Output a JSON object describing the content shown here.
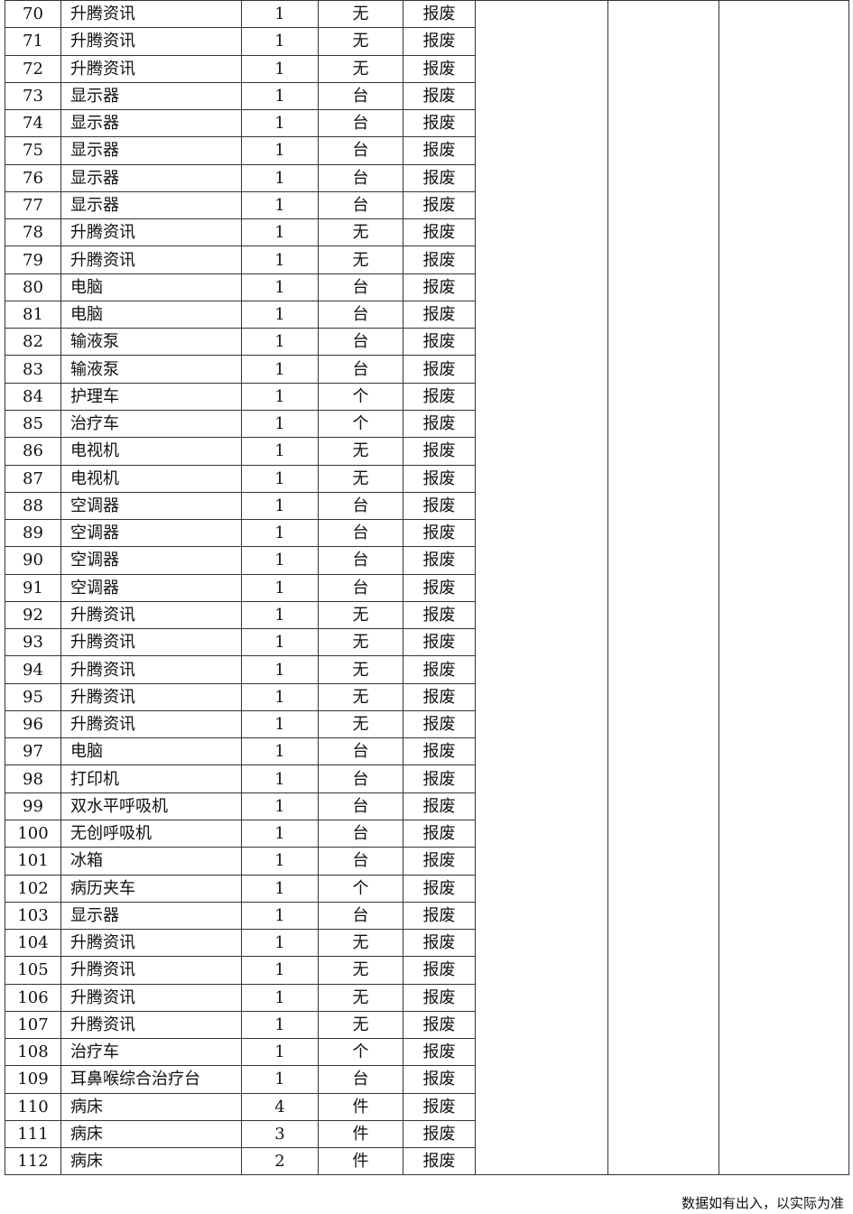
{
  "rows": [
    {
      "no": "70",
      "name": "升腾资讯",
      "qty": "1",
      "unit": "无",
      "status": "报废"
    },
    {
      "no": "71",
      "name": "升腾资讯",
      "qty": "1",
      "unit": "无",
      "status": "报废"
    },
    {
      "no": "72",
      "name": "升腾资讯",
      "qty": "1",
      "unit": "无",
      "status": "报废"
    },
    {
      "no": "73",
      "name": "显示器",
      "qty": "1",
      "unit": "台",
      "status": "报废"
    },
    {
      "no": "74",
      "name": "显示器",
      "qty": "1",
      "unit": "台",
      "status": "报废"
    },
    {
      "no": "75",
      "name": "显示器",
      "qty": "1",
      "unit": "台",
      "status": "报废"
    },
    {
      "no": "76",
      "name": "显示器",
      "qty": "1",
      "unit": "台",
      "status": "报废"
    },
    {
      "no": "77",
      "name": "显示器",
      "qty": "1",
      "unit": "台",
      "status": "报废"
    },
    {
      "no": "78",
      "name": "升腾资讯",
      "qty": "1",
      "unit": "无",
      "status": "报废"
    },
    {
      "no": "79",
      "name": "升腾资讯",
      "qty": "1",
      "unit": "无",
      "status": "报废"
    },
    {
      "no": "80",
      "name": "电脑",
      "qty": "1",
      "unit": "台",
      "status": "报废"
    },
    {
      "no": "81",
      "name": "电脑",
      "qty": "1",
      "unit": "台",
      "status": "报废"
    },
    {
      "no": "82",
      "name": "输液泵",
      "qty": "1",
      "unit": "台",
      "status": "报废"
    },
    {
      "no": "83",
      "name": "输液泵",
      "qty": "1",
      "unit": "台",
      "status": "报废"
    },
    {
      "no": "84",
      "name": "护理车",
      "qty": "1",
      "unit": "个",
      "status": "报废"
    },
    {
      "no": "85",
      "name": "治疗车",
      "qty": "1",
      "unit": "个",
      "status": "报废"
    },
    {
      "no": "86",
      "name": "电视机",
      "qty": "1",
      "unit": "无",
      "status": "报废"
    },
    {
      "no": "87",
      "name": "电视机",
      "qty": "1",
      "unit": "无",
      "status": "报废"
    },
    {
      "no": "88",
      "name": "空调器",
      "qty": "1",
      "unit": "台",
      "status": "报废"
    },
    {
      "no": "89",
      "name": "空调器",
      "qty": "1",
      "unit": "台",
      "status": "报废"
    },
    {
      "no": "90",
      "name": "空调器",
      "qty": "1",
      "unit": "台",
      "status": "报废"
    },
    {
      "no": "91",
      "name": "空调器",
      "qty": "1",
      "unit": "台",
      "status": "报废"
    },
    {
      "no": "92",
      "name": "升腾资讯",
      "qty": "1",
      "unit": "无",
      "status": "报废"
    },
    {
      "no": "93",
      "name": "升腾资讯",
      "qty": "1",
      "unit": "无",
      "status": "报废"
    },
    {
      "no": "94",
      "name": "升腾资讯",
      "qty": "1",
      "unit": "无",
      "status": "报废"
    },
    {
      "no": "95",
      "name": "升腾资讯",
      "qty": "1",
      "unit": "无",
      "status": "报废"
    },
    {
      "no": "96",
      "name": "升腾资讯",
      "qty": "1",
      "unit": "无",
      "status": "报废"
    },
    {
      "no": "97",
      "name": "电脑",
      "qty": "1",
      "unit": "台",
      "status": "报废"
    },
    {
      "no": "98",
      "name": "打印机",
      "qty": "1",
      "unit": "台",
      "status": "报废"
    },
    {
      "no": "99",
      "name": "双水平呼吸机",
      "qty": "1",
      "unit": "台",
      "status": "报废"
    },
    {
      "no": "100",
      "name": "无创呼吸机",
      "qty": "1",
      "unit": "台",
      "status": "报废"
    },
    {
      "no": "101",
      "name": "冰箱",
      "qty": "1",
      "unit": "台",
      "status": "报废"
    },
    {
      "no": "102",
      "name": "病历夹车",
      "qty": "1",
      "unit": "个",
      "status": "报废"
    },
    {
      "no": "103",
      "name": "显示器",
      "qty": "1",
      "unit": "台",
      "status": "报废"
    },
    {
      "no": "104",
      "name": "升腾资讯",
      "qty": "1",
      "unit": "无",
      "status": "报废"
    },
    {
      "no": "105",
      "name": "升腾资讯",
      "qty": "1",
      "unit": "无",
      "status": "报废"
    },
    {
      "no": "106",
      "name": "升腾资讯",
      "qty": "1",
      "unit": "无",
      "status": "报废"
    },
    {
      "no": "107",
      "name": "升腾资讯",
      "qty": "1",
      "unit": "无",
      "status": "报废"
    },
    {
      "no": "108",
      "name": "治疗车",
      "qty": "1",
      "unit": "个",
      "status": "报废"
    },
    {
      "no": "109",
      "name": "耳鼻喉综合治疗台",
      "qty": "1",
      "unit": "台",
      "status": "报废"
    },
    {
      "no": "110",
      "name": "病床",
      "qty": "4",
      "unit": "件",
      "status": "报废"
    },
    {
      "no": "111",
      "name": "病床",
      "qty": "3",
      "unit": "件",
      "status": "报废"
    },
    {
      "no": "112",
      "name": "病床",
      "qty": "2",
      "unit": "件",
      "status": "报废"
    }
  ],
  "footer_note": "数据如有出入，以实际为准"
}
